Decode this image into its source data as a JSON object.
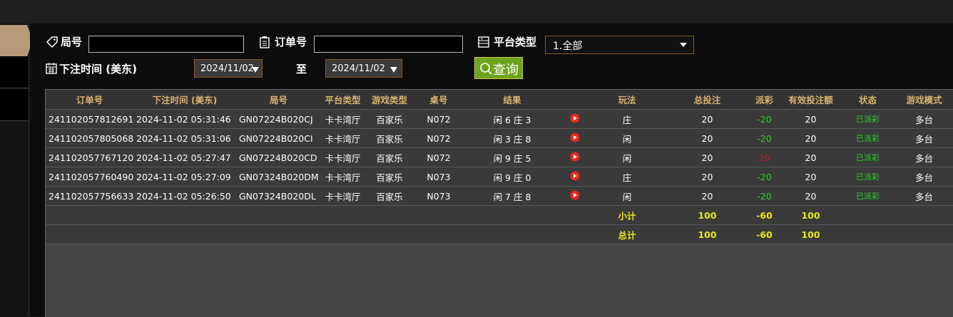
{
  "filters": {
    "round_label": "局号",
    "order_label": "订单号",
    "platform_label": "平台类型",
    "platform_value": "1.全部",
    "time_label": "下注时间 (美东)",
    "date_from": "2024/11/02",
    "to_label": "至",
    "date_to": "2024/11/02",
    "query_button": "查询"
  },
  "table": {
    "columns": [
      "订单号",
      "下注时间 (美东)",
      "局号",
      "平台类型",
      "游戏类型",
      "桌号",
      "结果",
      "玩法",
      "总投注",
      "派彩",
      "有效投注额",
      "状态",
      "游戏模式"
    ],
    "rows": [
      [
        "241102057812691",
        "2024-11-02 05:31:46",
        "GN07224B020CJ",
        "卡卡湾厅",
        "百家乐",
        "N072",
        "闲 6 庄 3",
        "庄",
        20,
        -20,
        20,
        "已派彩",
        "多台"
      ],
      [
        "241102057805068",
        "2024-11-02 05:31:06",
        "GN07224B020CI",
        "卡卡湾厅",
        "百家乐",
        "N072",
        "闲 3 庄 8",
        "闲",
        20,
        -20,
        20,
        "已派彩",
        "多台"
      ],
      [
        "241102057767120",
        "2024-11-02 05:27:47",
        "GN07224B020CD",
        "卡卡湾厅",
        "百家乐",
        "N072",
        "闲 9 庄 5",
        "闲",
        20,
        20,
        20,
        "已派彩",
        "多台"
      ],
      [
        "241102057760490",
        "2024-11-02 05:27:09",
        "GN07324B020DM",
        "卡卡湾厅",
        "百家乐",
        "N073",
        "闲 9 庄 0",
        "庄",
        20,
        -20,
        20,
        "已派彩",
        "多台"
      ],
      [
        "241102057756633",
        "2024-11-02 05:26:50",
        "GN07324B020DL",
        "卡卡湾厅",
        "百家乐",
        "N073",
        "闲 7 庄 8",
        "闲",
        20,
        -20,
        20,
        "已派彩",
        "多台"
      ]
    ],
    "subtotal": {
      "label": "小计",
      "bet": 100,
      "payout": -60,
      "valid": 100
    },
    "total": {
      "label": "总计",
      "bet": 100,
      "payout": -60,
      "valid": 100
    }
  }
}
